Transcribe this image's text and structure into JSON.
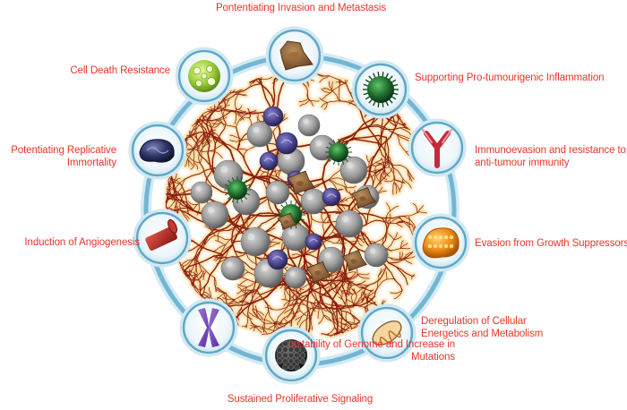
{
  "diagram": {
    "hallmarks": [
      {
        "key": "invasion",
        "lines": [
          "Pontentiating Invasion and Metastasis"
        ],
        "icon": "metastatic-cell-icon"
      },
      {
        "key": "inflammation",
        "lines": [
          "Supporting Pro-tumourigenic Inflammation"
        ],
        "icon": "immune-cell-icon"
      },
      {
        "key": "immunoevasion",
        "lines": [
          "Immunoevasion and resistance to",
          "anti-tumour immunity"
        ],
        "icon": "antibody-icon"
      },
      {
        "key": "growth-suppressors",
        "lines": [
          "Evasion from  Growth Suppressors"
        ],
        "icon": "suppressor-cell-icon"
      },
      {
        "key": "metabolism",
        "lines": [
          "Deregulation of Cellular",
          "Energetics and Metabolism"
        ],
        "icon": "mitochondrion-icon"
      },
      {
        "key": "proliferative",
        "lines": [
          "Sustained Proliferative Signaling"
        ],
        "icon": "proliferating-cell-icon"
      },
      {
        "key": "genome",
        "lines": [
          "Instability of Genome and Increase in",
          "Mutations"
        ],
        "icon": "chromosome-icon"
      },
      {
        "key": "angiogenesis",
        "lines": [
          "Induction of Angiogenesis"
        ],
        "icon": "blood-vessel-icon"
      },
      {
        "key": "immortality",
        "lines": [
          "Potentiating Replicative",
          "Immortality"
        ],
        "icon": "replicating-cell-icon"
      },
      {
        "key": "cell-death",
        "lines": [
          "Cell Death Resistance"
        ],
        "icon": "apoptosis-resistant-cell-icon"
      }
    ]
  },
  "colors": {
    "label": "#e8352b",
    "ring": "#9fd3e6",
    "ring_dark": "#5fa7c6",
    "vessel": "#8b1c10",
    "vessel_glow": "#f4c35c"
  }
}
